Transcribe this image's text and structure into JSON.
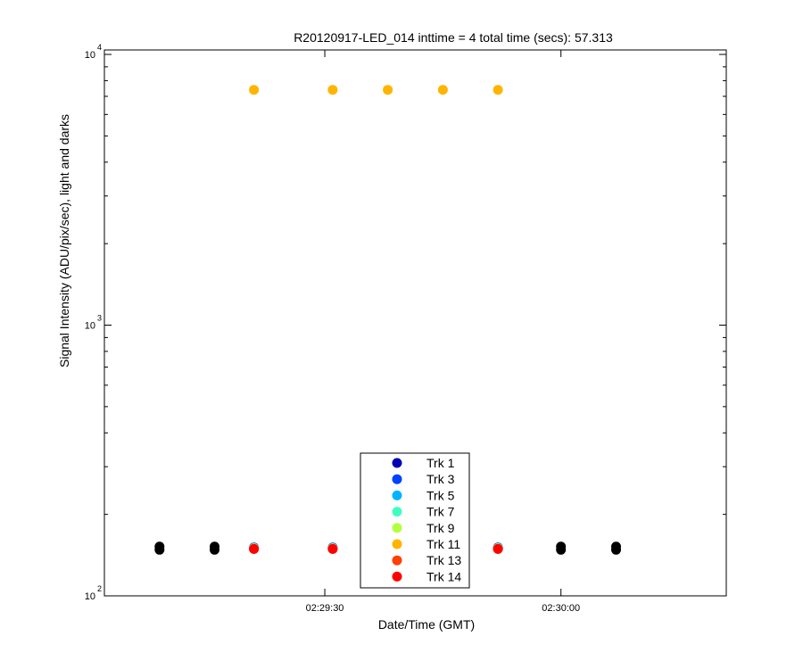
{
  "chart_data": {
    "type": "scatter",
    "title": "R20120917-LED_014 inttime = 4 total time (secs): 57.313",
    "xlabel": "Date/Time (GMT)",
    "ylabel": "Signal Intensity (ADU/pix/sec), light and darks",
    "y_scale": "log",
    "ylim": [
      100,
      10000
    ],
    "xlim": [
      "02:29:02",
      "02:30:21"
    ],
    "x_ticks": [
      "02:29:30",
      "02:30:00"
    ],
    "y_ticks": [
      {
        "value": 100,
        "base": "10",
        "exp": "2"
      },
      {
        "value": 1000,
        "base": "10",
        "exp": "3"
      },
      {
        "value": 10000,
        "base": "10",
        "exp": "4"
      }
    ],
    "grid": false,
    "legend_position": "bottom-center",
    "series": [
      {
        "name": "Trk 1",
        "color": "#0000b4",
        "x": [
          "02:29:21",
          "02:29:31",
          "02:29:52"
        ],
        "y": [
          150,
          150,
          150
        ]
      },
      {
        "name": "Trk 3",
        "color": "#0040ff",
        "x": [
          "02:29:21",
          "02:29:31",
          "02:29:52"
        ],
        "y": [
          151,
          151,
          151
        ]
      },
      {
        "name": "Trk 5",
        "color": "#00b4ff",
        "x": [
          "02:29:21",
          "02:29:31",
          "02:29:52"
        ],
        "y": [
          150,
          150,
          150
        ]
      },
      {
        "name": "Trk 7",
        "color": "#40ffc0",
        "x": [
          "02:29:21",
          "02:29:31",
          "02:29:52"
        ],
        "y": [
          150,
          150,
          150
        ]
      },
      {
        "name": "Trk 9",
        "color": "#b4ff40",
        "x": [
          "02:29:21",
          "02:29:31",
          "02:29:52"
        ],
        "y": [
          150,
          150,
          150
        ]
      },
      {
        "name": "Trk 11",
        "color": "#ffb400",
        "x": [
          "02:29:21",
          "02:29:31",
          "02:29:38",
          "02:29:45",
          "02:29:52"
        ],
        "y": [
          7400,
          7400,
          7400,
          7400,
          7400
        ]
      },
      {
        "name": "Trk 13",
        "color": "#ff4000",
        "x": [
          "02:29:21",
          "02:29:31",
          "02:29:52"
        ],
        "y": [
          149,
          149,
          149
        ]
      },
      {
        "name": "Trk 14",
        "color": "#ff0000",
        "x": [
          "02:29:21",
          "02:29:31",
          "02:29:52"
        ],
        "y": [
          149,
          149,
          149
        ]
      },
      {
        "color": "#000000",
        "x": [
          "02:29:09",
          "02:29:09",
          "02:29:16",
          "02:29:16",
          "02:30:00",
          "02:30:00",
          "02:30:07",
          "02:30:07"
        ],
        "y": [
          152,
          148,
          152,
          148,
          152,
          148,
          152,
          148
        ]
      }
    ]
  }
}
